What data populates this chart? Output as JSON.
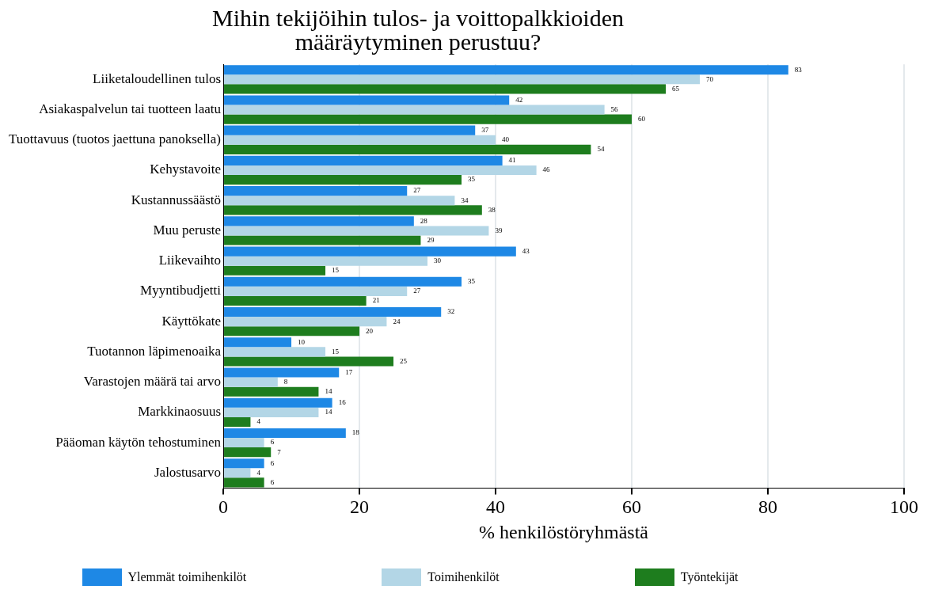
{
  "chart_data": {
    "type": "bar",
    "orientation": "horizontal",
    "title": "Mihin tekijöihin tulos- ja voittopalkkioiden määräytyminen perustuu?",
    "xlabel": "% henkilöstöryhmästä",
    "categories": [
      "Liiketaloudellinen tulos",
      "Asiakaspalvelun tai tuotteen laatu",
      "Tuottavuus (tuotos jaettuna panoksella)",
      "Kehystavoite",
      "Kustannussäästö",
      "Muu peruste",
      "Liikevaihto",
      "Myyntibudjetti",
      "Käyttökate",
      "Tuotannon läpimenoaika",
      "Varastojen määrä tai arvo",
      "Markkinaosuus",
      "Pääoman käytön tehostuminen",
      "Jalostusarvo"
    ],
    "series": [
      {
        "name": "Ylemmät toimihenkilöt",
        "color": "#1e88e5",
        "values": [
          83,
          42,
          37,
          41,
          27,
          28,
          43,
          35,
          32,
          10,
          17,
          16,
          18,
          6
        ]
      },
      {
        "name": "Toimihenkilöt",
        "color": "#b3d6e6",
        "values": [
          70,
          56,
          40,
          46,
          34,
          39,
          30,
          27,
          24,
          15,
          8,
          14,
          6,
          4
        ]
      },
      {
        "name": "Työntekijät",
        "color": "#1e7d1e",
        "values": [
          65,
          60,
          54,
          35,
          38,
          29,
          15,
          21,
          20,
          25,
          14,
          4,
          7,
          6
        ]
      }
    ],
    "xlim": [
      0,
      100
    ],
    "xticks": [
      0,
      20,
      40,
      60,
      80,
      100
    ],
    "grid": "x",
    "legend": "bottom",
    "data_labels": true
  }
}
